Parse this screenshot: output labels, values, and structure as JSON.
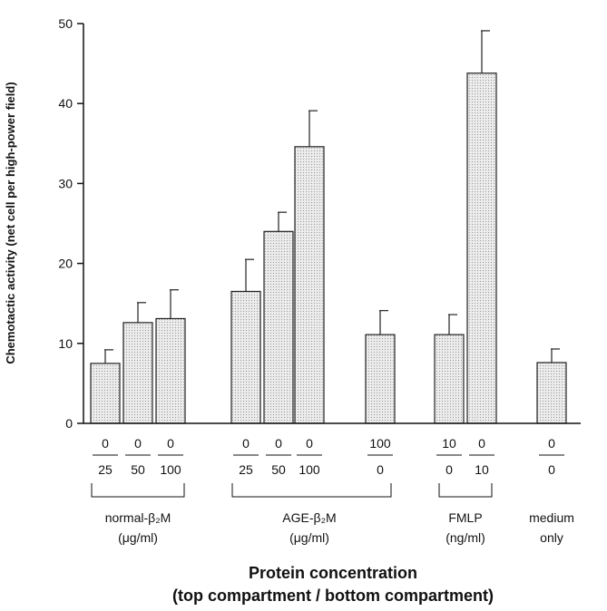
{
  "chart_data": {
    "type": "bar",
    "ylabel": "Chemotactic activity  (net  cell per high-power field)",
    "xlabel_line1": "Protein concentration",
    "xlabel_line2": "(top compartment / bottom compartment)",
    "ylim": [
      0,
      50
    ],
    "yticks": [
      0,
      10,
      20,
      30,
      40,
      50
    ],
    "bars": [
      {
        "top": "0",
        "bottom": "25",
        "value": 7.5,
        "error": 1.7
      },
      {
        "top": "0",
        "bottom": "50",
        "value": 12.6,
        "error": 2.5
      },
      {
        "top": "0",
        "bottom": "100",
        "value": 13.1,
        "error": 3.6
      },
      {
        "top": "0",
        "bottom": "25",
        "value": 16.5,
        "error": 4.0
      },
      {
        "top": "0",
        "bottom": "50",
        "value": 24.0,
        "error": 2.4
      },
      {
        "top": "0",
        "bottom": "100",
        "value": 34.6,
        "error": 4.5
      },
      {
        "top": "100",
        "bottom": "0",
        "value": 11.1,
        "error": 3.0
      },
      {
        "top": "10",
        "bottom": "0",
        "value": 11.1,
        "error": 2.5
      },
      {
        "top": "0",
        "bottom": "10",
        "value": 43.8,
        "error": 5.3
      },
      {
        "top": "0",
        "bottom": "0",
        "value": 7.6,
        "error": 1.7
      }
    ],
    "groups": [
      {
        "line1": "normal-β₂M",
        "line2": "(μg/ml)",
        "bracket": true
      },
      {
        "line1": "AGE-β₂M",
        "line2": "(μg/ml)",
        "bracket": true
      },
      {
        "line1": "FMLP",
        "line2": "(ng/ml)",
        "bracket": true
      },
      {
        "line1": "medium",
        "line2": "only",
        "bracket": false
      }
    ]
  },
  "colors": {
    "bar_fill": "#e4e4e4",
    "bar_stroke": "#222222",
    "axis": "#111111"
  }
}
